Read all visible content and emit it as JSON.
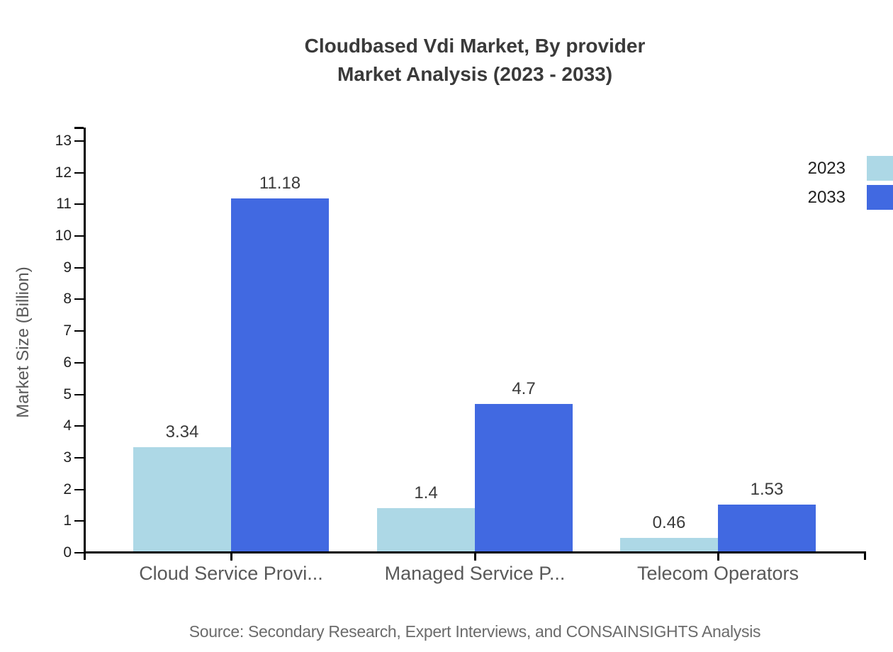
{
  "title": {
    "line1": "Cloudbased Vdi Market, By provider",
    "line2": "Market Analysis (2023 - 2033)"
  },
  "source": "Source: Secondary Research, Expert Interviews, and CONSAINSIGHTS Analysis",
  "chart_data": {
    "type": "bar",
    "title": "Cloudbased Vdi Market, By provider Market Analysis (2023 - 2033)",
    "categories": [
      "Cloud Service Provi...",
      "Managed Service P...",
      "Telecom Operators"
    ],
    "series": [
      {
        "name": "2023",
        "color": "#ADD8E6",
        "values": [
          3.34,
          1.4,
          0.46
        ]
      },
      {
        "name": "2033",
        "color": "#4169E1",
        "values": [
          11.18,
          4.7,
          1.53
        ]
      }
    ],
    "xlabel": "",
    "ylabel": "Market Size (Billion)",
    "yticks": [
      0,
      1,
      2,
      3,
      4,
      5,
      6,
      7,
      8,
      9,
      10,
      11,
      12,
      13
    ],
    "ylim": [
      0,
      13.4
    ],
    "grid": false,
    "legend_position": "top-right",
    "value_labels": true
  }
}
